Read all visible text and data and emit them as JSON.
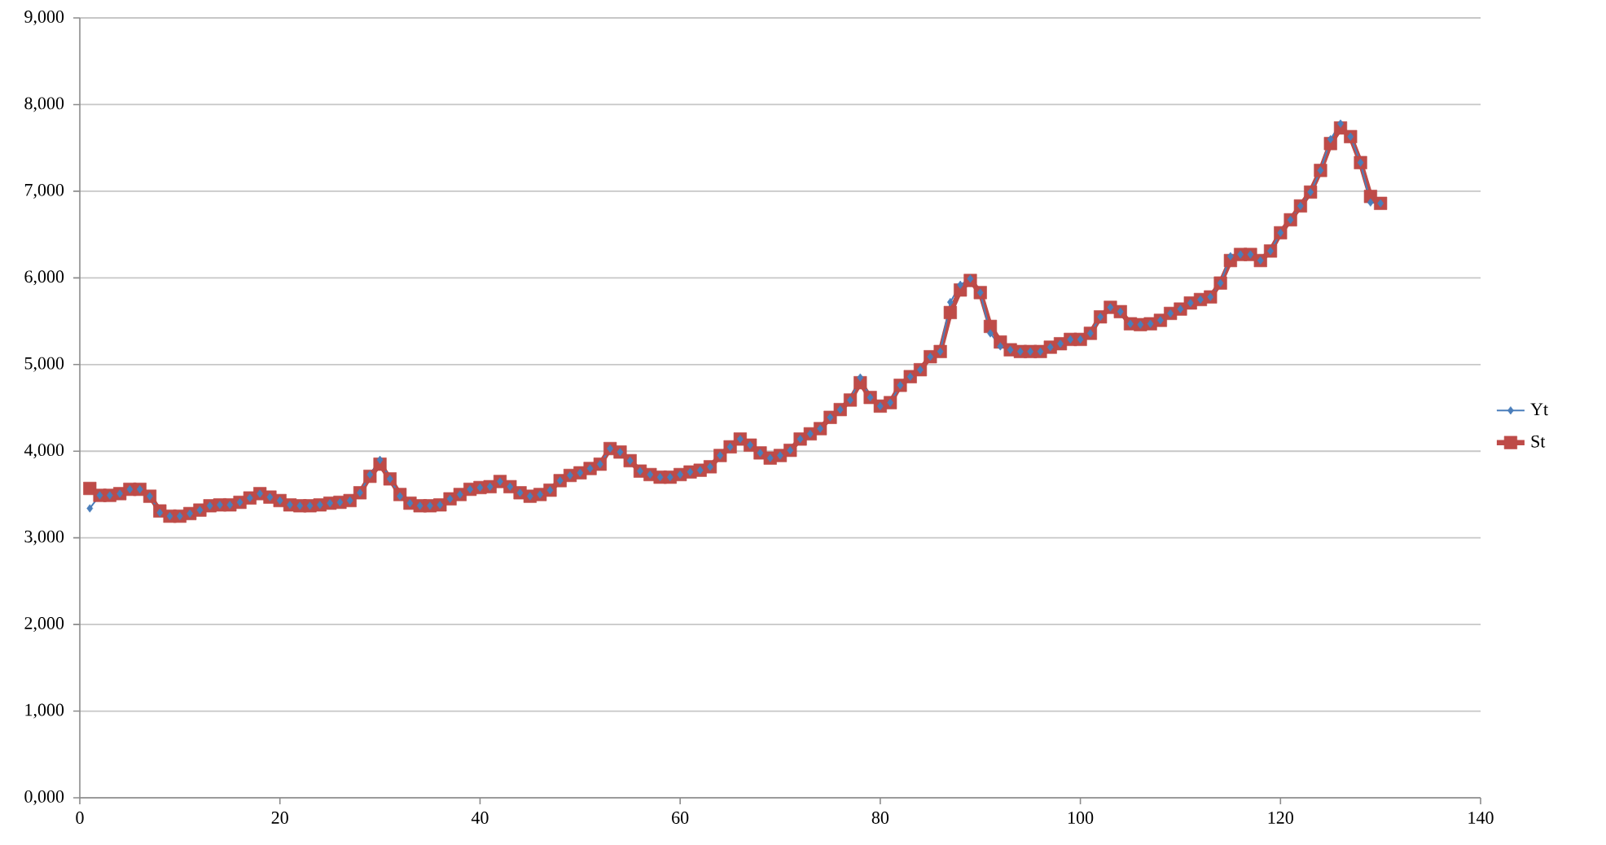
{
  "chart_data": {
    "type": "line",
    "x": [
      1,
      2,
      3,
      4,
      5,
      6,
      7,
      8,
      9,
      10,
      11,
      12,
      13,
      14,
      15,
      16,
      17,
      18,
      19,
      20,
      21,
      22,
      23,
      24,
      25,
      26,
      27,
      28,
      29,
      30,
      31,
      32,
      33,
      34,
      35,
      36,
      37,
      38,
      39,
      40,
      41,
      42,
      43,
      44,
      45,
      46,
      47,
      48,
      49,
      50,
      51,
      52,
      53,
      54,
      55,
      56,
      57,
      58,
      59,
      60,
      61,
      62,
      63,
      64,
      65,
      66,
      67,
      68,
      69,
      70,
      71,
      72,
      73,
      74,
      75,
      76,
      77,
      78,
      79,
      80,
      81,
      82,
      83,
      84,
      85,
      86,
      87,
      88,
      89,
      90,
      91,
      92,
      93,
      94,
      95,
      96,
      97,
      98,
      99,
      100,
      101,
      102,
      103,
      104,
      105,
      106,
      107,
      108,
      109,
      110,
      111,
      112,
      113,
      114,
      115,
      116,
      117,
      118,
      119,
      120,
      121,
      122,
      123,
      124,
      125,
      126,
      127,
      128,
      129,
      130
    ],
    "series": [
      {
        "name": "Yt",
        "color": "#4a7ebb",
        "marker": "diamond",
        "values": [
          3340,
          3490,
          3490,
          3510,
          3560,
          3560,
          3480,
          3290,
          3250,
          3250,
          3280,
          3320,
          3370,
          3380,
          3380,
          3410,
          3460,
          3510,
          3470,
          3430,
          3380,
          3370,
          3370,
          3380,
          3400,
          3410,
          3430,
          3520,
          3730,
          3900,
          3680,
          3480,
          3400,
          3370,
          3370,
          3380,
          3450,
          3500,
          3560,
          3580,
          3590,
          3650,
          3590,
          3520,
          3480,
          3500,
          3550,
          3660,
          3720,
          3750,
          3800,
          3850,
          4030,
          3990,
          3890,
          3770,
          3730,
          3700,
          3700,
          3730,
          3760,
          3780,
          3820,
          3950,
          4050,
          4140,
          4070,
          3980,
          3920,
          3950,
          4010,
          4140,
          4200,
          4260,
          4390,
          4480,
          4590,
          4850,
          4620,
          4520,
          4560,
          4760,
          4860,
          4940,
          5090,
          5150,
          5720,
          5920,
          5990,
          5830,
          5360,
          5210,
          5170,
          5150,
          5150,
          5150,
          5200,
          5240,
          5290,
          5290,
          5360,
          5550,
          5660,
          5610,
          5470,
          5460,
          5470,
          5510,
          5590,
          5640,
          5710,
          5750,
          5780,
          5940,
          6250,
          6270,
          6270,
          6200,
          6310,
          6520,
          6670,
          6830,
          6990,
          7240,
          7600,
          7780,
          7630,
          7330,
          6870,
          6860
        ]
      },
      {
        "name": "St",
        "color": "#be4b48",
        "marker": "square",
        "values": [
          3570,
          3490,
          3490,
          3510,
          3560,
          3560,
          3480,
          3310,
          3250,
          3250,
          3280,
          3320,
          3370,
          3380,
          3380,
          3410,
          3460,
          3510,
          3470,
          3430,
          3380,
          3370,
          3370,
          3380,
          3400,
          3410,
          3430,
          3520,
          3710,
          3850,
          3680,
          3500,
          3400,
          3370,
          3370,
          3380,
          3450,
          3500,
          3560,
          3580,
          3590,
          3650,
          3590,
          3520,
          3480,
          3500,
          3550,
          3660,
          3720,
          3750,
          3800,
          3850,
          4030,
          3990,
          3890,
          3770,
          3730,
          3700,
          3700,
          3730,
          3760,
          3780,
          3820,
          3950,
          4050,
          4140,
          4070,
          3980,
          3920,
          3950,
          4010,
          4140,
          4200,
          4260,
          4390,
          4480,
          4590,
          4790,
          4620,
          4520,
          4560,
          4760,
          4860,
          4940,
          5090,
          5150,
          5600,
          5860,
          5970,
          5830,
          5440,
          5260,
          5170,
          5150,
          5150,
          5150,
          5200,
          5240,
          5290,
          5290,
          5360,
          5550,
          5660,
          5610,
          5470,
          5460,
          5470,
          5510,
          5590,
          5640,
          5710,
          5750,
          5780,
          5940,
          6200,
          6270,
          6270,
          6200,
          6310,
          6520,
          6670,
          6830,
          6990,
          7240,
          7550,
          7730,
          7630,
          7330,
          6940,
          6860
        ]
      }
    ],
    "xlim": [
      0,
      140
    ],
    "xticks": [
      0,
      20,
      40,
      60,
      80,
      100,
      120,
      140
    ],
    "ylim": [
      0,
      9000
    ],
    "yticks": [
      {
        "value": 0,
        "label": "0,000"
      },
      {
        "value": 1000,
        "label": "1,000"
      },
      {
        "value": 2000,
        "label": "2,000"
      },
      {
        "value": 3000,
        "label": "3,000"
      },
      {
        "value": 4000,
        "label": "4,000"
      },
      {
        "value": 5000,
        "label": "5,000"
      },
      {
        "value": 6000,
        "label": "6,000"
      },
      {
        "value": 7000,
        "label": "7,000"
      },
      {
        "value": 8000,
        "label": "8,000"
      },
      {
        "value": 9000,
        "label": "9,000"
      }
    ],
    "grid": "y",
    "legend": "right",
    "line_style": "solid"
  }
}
